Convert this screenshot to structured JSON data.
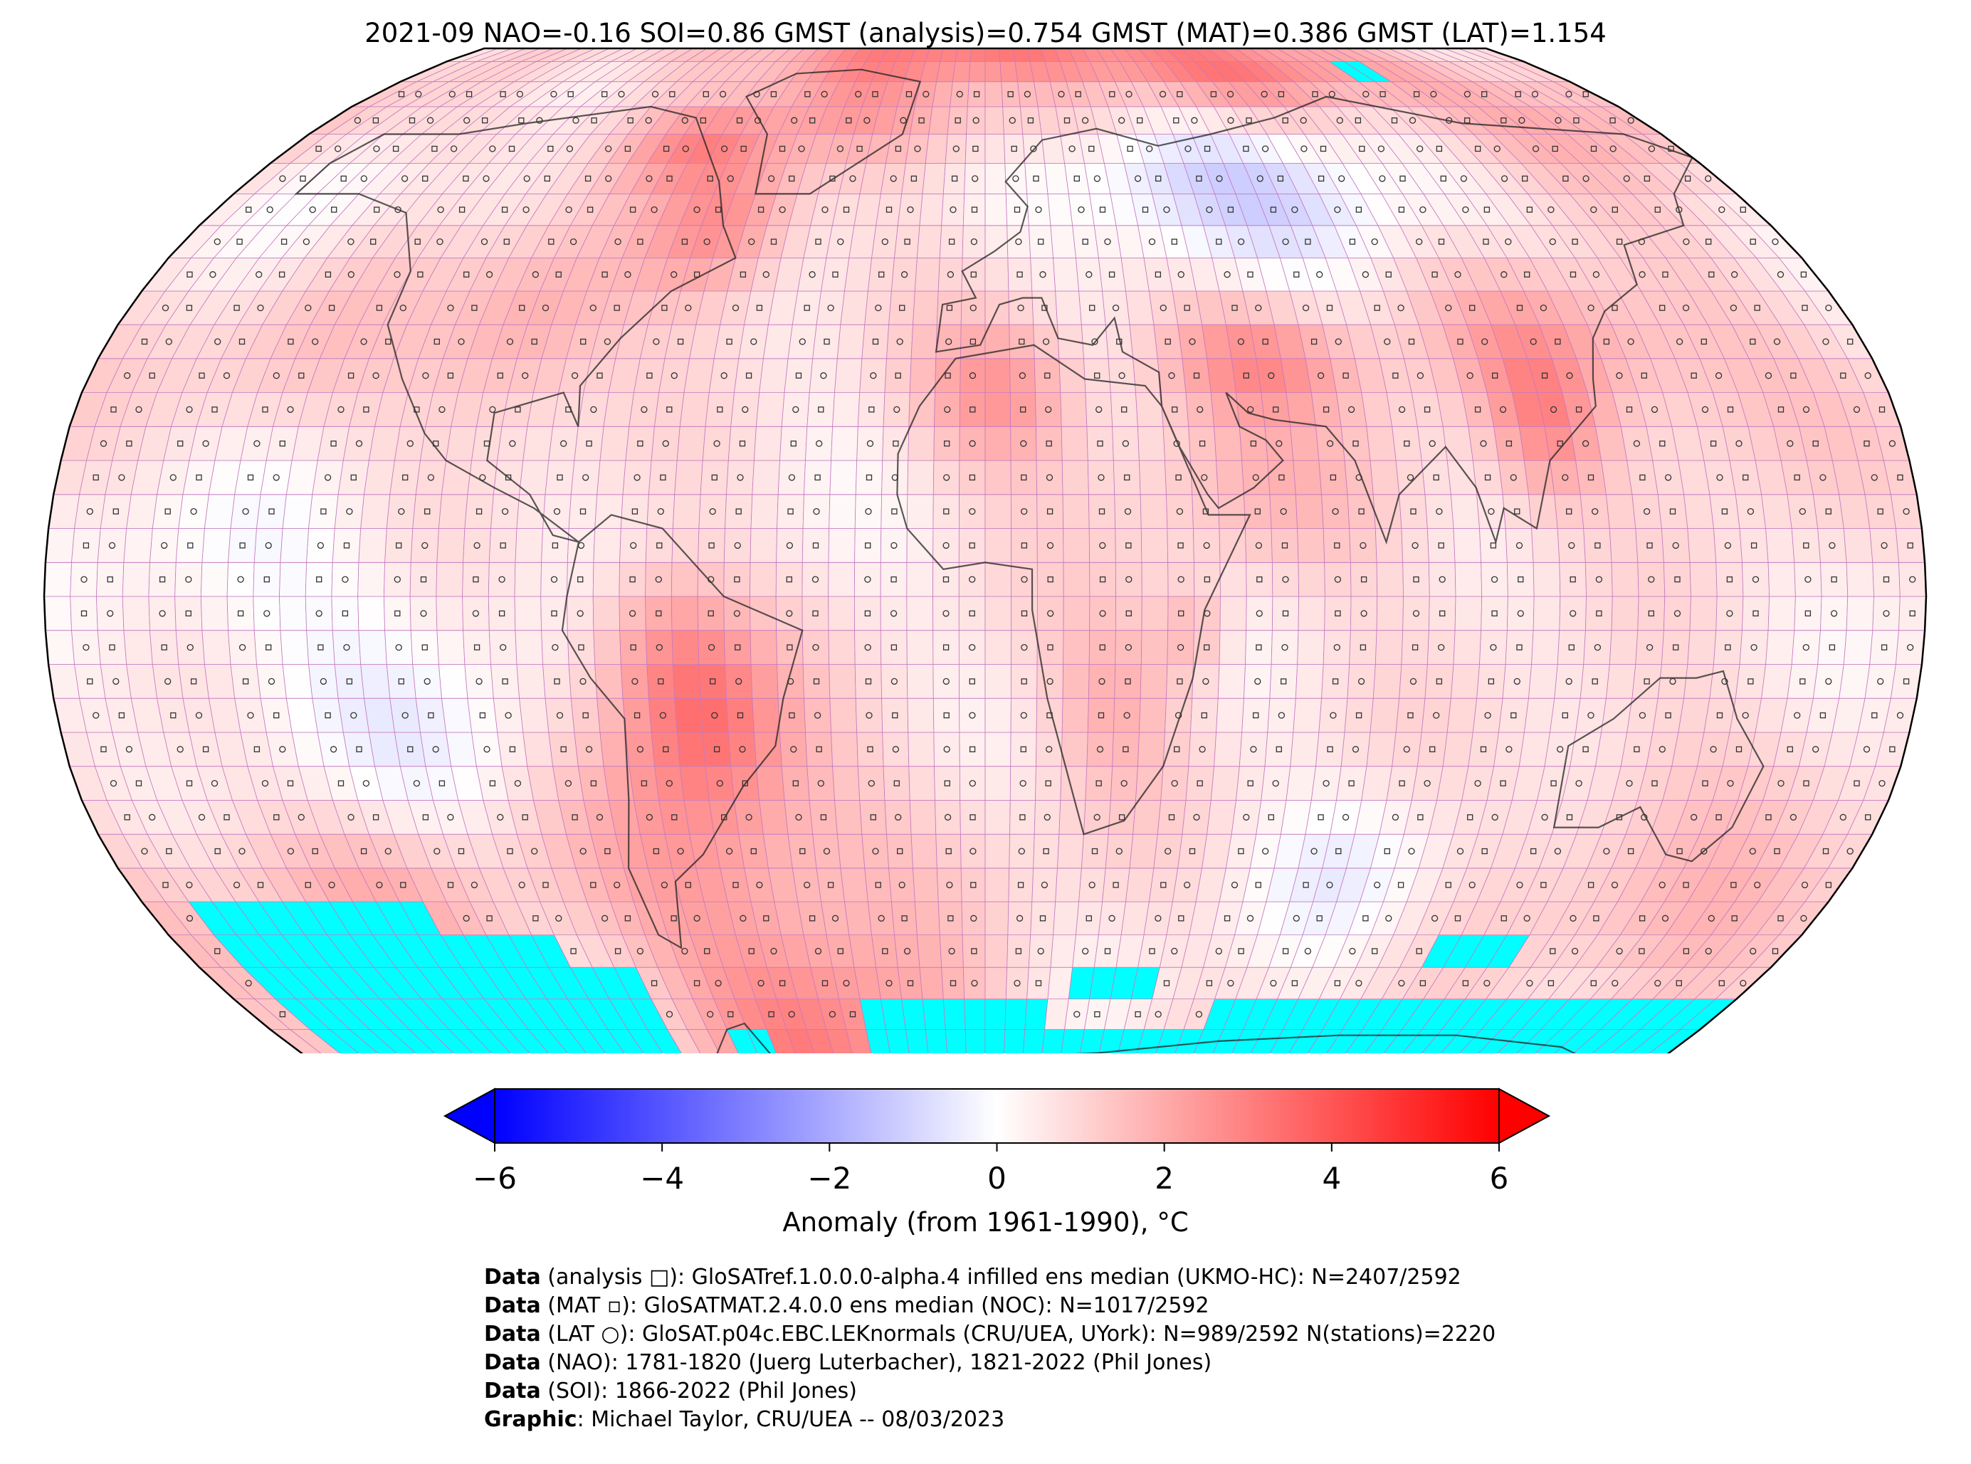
{
  "title": "2021-09 NAO=-0.16 SOI=0.86 GMST (analysis)=0.754 GMST (MAT)=0.386 GMST (LAT)=1.154",
  "colorbar": {
    "label": "Anomaly (from 1961-1990), °C",
    "ticks": [
      "−6",
      "−4",
      "−2",
      "0",
      "2",
      "4",
      "6"
    ],
    "range": [
      -6,
      6
    ],
    "extend": "both",
    "cmap": [
      "#0000ff",
      "#ffffff",
      "#ff0000"
    ]
  },
  "map": {
    "projection": "Robinson",
    "grid": "5x5 degree",
    "missing_color": "#00ffff",
    "markers": [
      "analysis □",
      "MAT ▫",
      "LAT ○"
    ]
  },
  "credits": [
    {
      "head": "Data",
      "text": " (analysis □): GloSATref.1.0.0.0-alpha.4 infilled ens median (UKMO-HC): N=2407/2592"
    },
    {
      "head": "Data",
      "text": " (MAT ▫): GloSATMAT.2.4.0.0 ens median (NOC): N=1017/2592"
    },
    {
      "head": "Data",
      "text": " (LAT ○): GloSAT.p04c.EBC.LEKnormals (CRU/UEA, UYork): N=989/2592 N(stations)=2220"
    },
    {
      "head": "Data",
      "text": " (NAO): 1781-1820 (Juerg Luterbacher), 1821-2022 (Phil Jones)"
    },
    {
      "head": "Data",
      "text": " (SOI): 1866-2022 (Phil Jones)"
    },
    {
      "head": "Graphic",
      "text": ": Michael Taylor, CRU/UEA -- 08/03/2023"
    }
  ]
}
